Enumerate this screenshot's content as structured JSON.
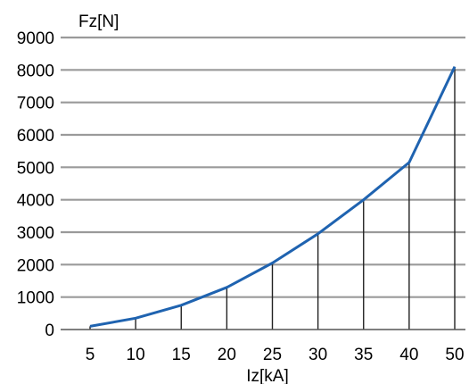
{
  "chart_data": {
    "type": "line",
    "categories": [
      "5",
      "10",
      "15",
      "20",
      "25",
      "30",
      "35",
      "40",
      "50"
    ],
    "values": [
      100,
      350,
      750,
      1300,
      2050,
      2950,
      4000,
      5150,
      8100
    ],
    "xlabel": "Iz[kA]",
    "ylabel": "Fz[N]",
    "ylim": [
      0,
      9000
    ],
    "yticks": [
      0,
      1000,
      2000,
      3000,
      4000,
      5000,
      6000,
      7000,
      8000,
      9000
    ],
    "grid": true,
    "drop_lines": true,
    "colors": {
      "series": "#1f63b0",
      "grid": "#9a9a9a"
    }
  }
}
